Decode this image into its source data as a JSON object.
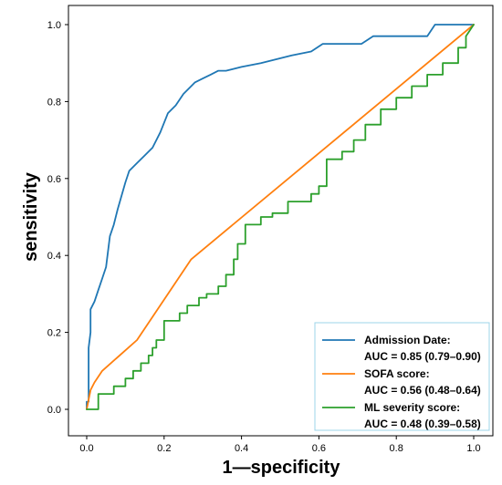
{
  "chart_data": {
    "type": "line",
    "xlabel": "1—specificity",
    "ylabel": "sensitivity",
    "xlim": [
      -0.04,
      1.04
    ],
    "ylim": [
      -0.04,
      1.04
    ],
    "xticks": [
      0.0,
      0.2,
      0.4,
      0.6,
      0.8,
      1.0
    ],
    "yticks": [
      0.0,
      0.2,
      0.4,
      0.6,
      0.8,
      1.0
    ],
    "xtick_labels": [
      "0.0",
      "0.2",
      "0.4",
      "0.6",
      "0.8",
      "1.0"
    ],
    "ytick_labels": [
      "0.0",
      "0.2",
      "0.4",
      "0.6",
      "0.8",
      "1.0"
    ],
    "grid": false,
    "legend_position": "bottom-right",
    "series": [
      {
        "name": "Admission Date:",
        "auc_label": "AUC = 0.85 (0.79–0.90)",
        "color": "#1f77b4",
        "x": [
          0.0,
          0.0,
          0.005,
          0.005,
          0.01,
          0.01,
          0.02,
          0.03,
          0.04,
          0.05,
          0.06,
          0.07,
          0.08,
          0.1,
          0.11,
          0.13,
          0.15,
          0.17,
          0.19,
          0.21,
          0.23,
          0.25,
          0.27,
          0.28,
          0.3,
          0.32,
          0.34,
          0.36,
          0.4,
          0.45,
          0.53,
          0.58,
          0.61,
          0.71,
          0.74,
          0.88,
          0.9,
          0.95,
          1.0
        ],
        "y": [
          0.0,
          0.02,
          0.02,
          0.16,
          0.2,
          0.26,
          0.28,
          0.31,
          0.34,
          0.37,
          0.45,
          0.48,
          0.52,
          0.59,
          0.62,
          0.64,
          0.66,
          0.68,
          0.72,
          0.77,
          0.79,
          0.82,
          0.84,
          0.85,
          0.86,
          0.87,
          0.88,
          0.88,
          0.89,
          0.9,
          0.92,
          0.93,
          0.95,
          0.95,
          0.97,
          0.97,
          1.0,
          1.0,
          1.0
        ]
      },
      {
        "name": "SOFA score:",
        "auc_label": "AUC = 0.56 (0.48–0.64)",
        "color": "#ff7f0e",
        "x": [
          0.0,
          0.01,
          0.02,
          0.04,
          0.13,
          0.27,
          1.0
        ],
        "y": [
          0.0,
          0.05,
          0.07,
          0.1,
          0.18,
          0.39,
          1.0
        ]
      },
      {
        "name": "ML severity score:",
        "auc_label": "AUC = 0.48 (0.39–0.58)",
        "color": "#2ca02c",
        "x": [
          0.0,
          0.03,
          0.03,
          0.07,
          0.07,
          0.1,
          0.1,
          0.12,
          0.12,
          0.14,
          0.14,
          0.16,
          0.16,
          0.17,
          0.17,
          0.18,
          0.18,
          0.2,
          0.2,
          0.24,
          0.24,
          0.26,
          0.26,
          0.29,
          0.29,
          0.31,
          0.31,
          0.34,
          0.34,
          0.36,
          0.36,
          0.38,
          0.38,
          0.39,
          0.39,
          0.41,
          0.41,
          0.45,
          0.45,
          0.48,
          0.48,
          0.52,
          0.52,
          0.58,
          0.58,
          0.6,
          0.6,
          0.62,
          0.62,
          0.66,
          0.66,
          0.69,
          0.69,
          0.72,
          0.72,
          0.76,
          0.76,
          0.8,
          0.8,
          0.84,
          0.84,
          0.88,
          0.88,
          0.92,
          0.92,
          0.96,
          0.96,
          0.98,
          0.98,
          1.0
        ],
        "y": [
          0.0,
          0.0,
          0.04,
          0.04,
          0.06,
          0.06,
          0.08,
          0.08,
          0.1,
          0.1,
          0.12,
          0.12,
          0.14,
          0.14,
          0.16,
          0.16,
          0.18,
          0.18,
          0.23,
          0.23,
          0.25,
          0.25,
          0.27,
          0.27,
          0.29,
          0.29,
          0.3,
          0.3,
          0.32,
          0.32,
          0.35,
          0.35,
          0.39,
          0.39,
          0.43,
          0.43,
          0.48,
          0.48,
          0.5,
          0.5,
          0.51,
          0.51,
          0.54,
          0.54,
          0.56,
          0.56,
          0.58,
          0.58,
          0.65,
          0.65,
          0.67,
          0.67,
          0.7,
          0.7,
          0.74,
          0.74,
          0.78,
          0.78,
          0.81,
          0.81,
          0.84,
          0.84,
          0.87,
          0.87,
          0.9,
          0.9,
          0.94,
          0.94,
          0.97,
          1.0
        ]
      }
    ]
  }
}
